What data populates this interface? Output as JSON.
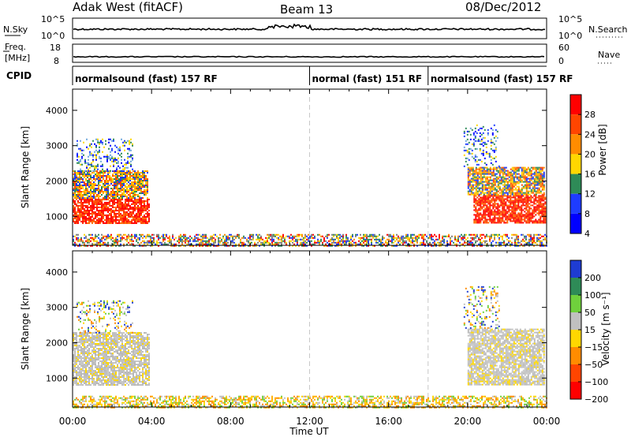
{
  "header": {
    "station": "Adak West (fitACF)",
    "beam": "Beam 13",
    "date": "08/Dec/2012"
  },
  "top_panels": {
    "nsky_label": "N.Sky",
    "nsky_ticks": [
      "10^5",
      "10^0"
    ],
    "nsearch_label": "N.Search",
    "nsearch_ticks": [
      "10^5",
      "10^0"
    ],
    "freq_label": "Freq.",
    "freq_unit": "[MHz]",
    "freq_ticks": [
      "18",
      "8"
    ],
    "nave_label": "Nave",
    "nave_ticks": [
      "60",
      "0"
    ],
    "cpid_label": "CPID",
    "cpid_segments": [
      {
        "label": "normalsound (fast) 157 RF",
        "start_hour": 0,
        "end_hour": 12
      },
      {
        "label": "normal (fast) 151 RF",
        "start_hour": 12,
        "end_hour": 18
      },
      {
        "label": "normalsound (fast) 157 RF",
        "start_hour": 18,
        "end_hour": 24
      }
    ]
  },
  "power_colorbar": {
    "title": "Power [dB]",
    "ticks": [
      "28",
      "24",
      "20",
      "16",
      "12",
      "8",
      "4"
    ],
    "colors": [
      "#ff0000",
      "#ff4500",
      "#ff8c00",
      "#ffd700",
      "#2e8b57",
      "#1e3cff",
      "#0000ff"
    ]
  },
  "velocity_colorbar": {
    "title": "Velocity [m s⁻¹]",
    "ticks": [
      "200",
      "100",
      "50",
      "15",
      "−15",
      "−50",
      "−100",
      "−200"
    ],
    "colors": [
      "#1e3cd2",
      "#2e8b57",
      "#6fd03c",
      "#c0c0c0",
      "#ffd700",
      "#ff8c00",
      "#ff4500",
      "#ff0000"
    ]
  },
  "chart_data": [
    {
      "type": "heatmap",
      "title": "Power",
      "xlabel": "Time UT",
      "ylabel": "Slant Range [km]",
      "xlim_hours": [
        0,
        24
      ],
      "ylim_km": [
        180,
        4600
      ],
      "x_ticks": [
        "00:00",
        "04:00",
        "08:00",
        "12:00",
        "16:00",
        "20:00",
        "00:00"
      ],
      "y_ticks": [
        1000,
        2000,
        3000,
        4000
      ],
      "regions": [
        {
          "t0": 0.0,
          "t1": 3.9,
          "r0": 800,
          "r1": 1500,
          "level": "high"
        },
        {
          "t0": 0.0,
          "t1": 3.8,
          "r0": 1500,
          "r1": 2300,
          "level": "mixed"
        },
        {
          "t0": 0.2,
          "t1": 3.0,
          "r0": 2300,
          "r1": 3200,
          "level": "low"
        },
        {
          "t0": 0.0,
          "t1": 24.0,
          "r0": 180,
          "r1": 500,
          "level": "noise"
        },
        {
          "t0": 20.3,
          "t1": 23.9,
          "r0": 800,
          "r1": 1600,
          "level": "high"
        },
        {
          "t0": 20.0,
          "t1": 23.9,
          "r0": 1600,
          "r1": 2400,
          "level": "mixed"
        },
        {
          "t0": 19.8,
          "t1": 21.6,
          "r0": 2400,
          "r1": 3600,
          "level": "low"
        }
      ]
    },
    {
      "type": "heatmap",
      "title": "Velocity",
      "xlabel": "Time UT",
      "ylabel": "Slant Range [km]",
      "xlim_hours": [
        0,
        24
      ],
      "ylim_km": [
        180,
        4600
      ],
      "x_ticks": [
        "00:00",
        "04:00",
        "08:00",
        "12:00",
        "16:00",
        "20:00",
        "00:00"
      ],
      "y_ticks": [
        1000,
        2000,
        3000,
        4000
      ],
      "regions": [
        {
          "t0": 0.0,
          "t1": 3.9,
          "r0": 800,
          "r1": 2300,
          "level": "ground"
        },
        {
          "t0": 0.2,
          "t1": 3.0,
          "r0": 2300,
          "r1": 3200,
          "level": "low"
        },
        {
          "t0": 0.0,
          "t1": 24.0,
          "r0": 180,
          "r1": 500,
          "level": "noise"
        },
        {
          "t0": 20.0,
          "t1": 23.9,
          "r0": 800,
          "r1": 2400,
          "level": "ground"
        },
        {
          "t0": 19.8,
          "t1": 21.6,
          "r0": 2400,
          "r1": 3600,
          "level": "low"
        }
      ]
    }
  ]
}
